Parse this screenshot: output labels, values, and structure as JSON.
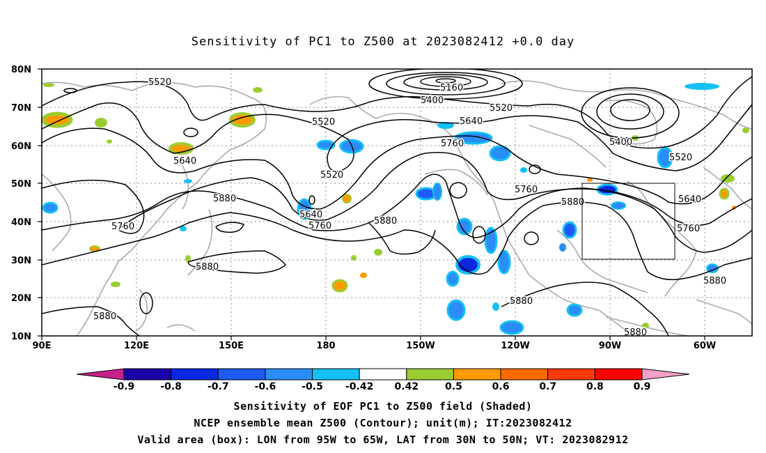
{
  "title": "Sensitivity of PC1 to Z500 at 2023082412 +0.0 day",
  "lat_labels": [
    "80N",
    "70N",
    "60N",
    "50N",
    "40N",
    "30N",
    "20N",
    "10N"
  ],
  "lon_labels": [
    "90E",
    "120E",
    "150E",
    "180",
    "150W",
    "120W",
    "90W",
    "60W"
  ],
  "contour_labels": {
    "c5520a": "5520",
    "c5160": "5160",
    "c5400a": "5400",
    "c5520b": "5520",
    "c5520c": "5520",
    "c5640a": "5640",
    "c5760a": "5760",
    "c5400b": "5400",
    "c5520d": "5520",
    "c5640b": "5640",
    "c5520e": "5520",
    "c5880a": "5880",
    "c5760b": "5760",
    "c5640c": "5640",
    "c5760c": "5760",
    "c5880b": "5880",
    "c5760d": "5760",
    "c5880c": "5880",
    "c5640d": "5640",
    "c5760e": "5760",
    "c5880d": "5880",
    "c5880e": "5880",
    "c5880f": "5880",
    "c5880g": "5880"
  },
  "colorbar": {
    "labels": [
      "-0.9",
      "-0.8",
      "-0.7",
      "-0.6",
      "-0.5",
      "-0.42",
      "0.42",
      "0.5",
      "0.6",
      "0.7",
      "0.8",
      "0.9"
    ],
    "colors": [
      "#1a00a8",
      "#0a28e0",
      "#1e5af5",
      "#2a8cf5",
      "#14c0f5",
      "#ffffff",
      "#9acd32",
      "#ff9a00",
      "#ff6a00",
      "#ff3a0a",
      "#ff0000"
    ],
    "low_end_color": "#c8208c",
    "high_end_color": "#f4a0c8"
  },
  "captions": {
    "line1": "Sensitivity of EOF PC1 to Z500 field (Shaded)",
    "line2": "NCEP ensemble mean Z500 (Contour); unit(m); IT:2023082412",
    "line3": "Valid area (box): LON from 95W to 65W, LAT from 30N to 50N; VT: 2023082912"
  }
}
